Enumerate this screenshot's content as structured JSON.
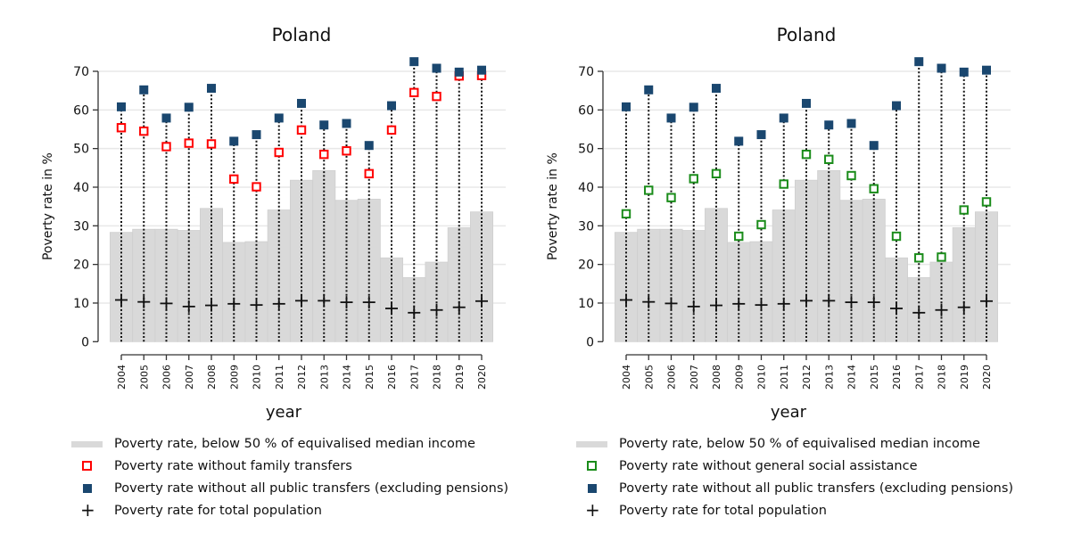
{
  "chart_data": [
    {
      "type": "bar",
      "title": "Poland",
      "xlabel": "year",
      "ylabel": "Poverty rate in %",
      "ylim": [
        0,
        70
      ],
      "yticks": [
        0,
        10,
        20,
        30,
        40,
        50,
        60,
        70
      ],
      "grid": true,
      "legend_position": "bottom",
      "categories": [
        "2004",
        "2005",
        "2006",
        "2007",
        "2008",
        "2009",
        "2010",
        "2011",
        "2012",
        "2013",
        "2014",
        "2015",
        "2016",
        "2017",
        "2018",
        "2019",
        "2020"
      ],
      "series": [
        {
          "name": "Poverty rate, below 50 % of equivalised median income",
          "kind": "bar",
          "color": "#d9d9d9",
          "values": [
            28.3,
            29.1,
            29.1,
            28.8,
            34.5,
            25.7,
            25.9,
            34.1,
            41.8,
            44.3,
            36.6,
            36.9,
            21.7,
            16.6,
            20.6,
            29.5,
            33.6
          ]
        },
        {
          "name": "Poverty rate without family transfers",
          "kind": "hollow-square",
          "color": "#ff0000",
          "values": [
            55.4,
            54.5,
            50.5,
            51.4,
            51.2,
            42.1,
            40.1,
            49.0,
            54.8,
            48.5,
            49.4,
            43.5,
            54.8,
            64.5,
            63.5,
            68.8,
            68.9
          ]
        },
        {
          "name": "Poverty rate without all public transfers (excluding pensions)",
          "kind": "solid-square",
          "color": "#1a476f",
          "values": [
            60.8,
            65.2,
            57.9,
            60.7,
            65.6,
            51.9,
            53.6,
            57.9,
            61.7,
            56.1,
            56.5,
            50.8,
            61.1,
            72.5,
            70.8,
            69.8,
            70.3
          ]
        },
        {
          "name": "Poverty rate for total population",
          "kind": "plus",
          "color": "#111111",
          "values": [
            10.8,
            10.3,
            9.9,
            9.1,
            9.4,
            9.8,
            9.5,
            9.8,
            10.6,
            10.6,
            10.2,
            10.2,
            8.6,
            7.5,
            8.2,
            8.9,
            10.5
          ]
        }
      ]
    },
    {
      "type": "bar",
      "title": "Poland",
      "xlabel": "year",
      "ylabel": "Poverty rate in %",
      "ylim": [
        0,
        70
      ],
      "yticks": [
        0,
        10,
        20,
        30,
        40,
        50,
        60,
        70
      ],
      "grid": true,
      "legend_position": "bottom",
      "categories": [
        "2004",
        "2005",
        "2006",
        "2007",
        "2008",
        "2009",
        "2010",
        "2011",
        "2012",
        "2013",
        "2014",
        "2015",
        "2016",
        "2017",
        "2018",
        "2019",
        "2020"
      ],
      "series": [
        {
          "name": "Poverty rate, below 50 % of equivalised median income",
          "kind": "bar",
          "color": "#d9d9d9",
          "values": [
            28.3,
            29.1,
            29.1,
            28.8,
            34.5,
            25.7,
            25.9,
            34.1,
            41.8,
            44.3,
            36.6,
            36.9,
            21.7,
            16.6,
            20.6,
            29.5,
            33.6
          ]
        },
        {
          "name": "Poverty rate without general social assistance",
          "kind": "hollow-square",
          "color": "#1a8c1a",
          "values": [
            33.1,
            39.2,
            37.3,
            42.2,
            43.5,
            27.3,
            30.3,
            40.8,
            48.5,
            47.2,
            43.0,
            39.6,
            27.3,
            21.7,
            21.9,
            34.1,
            36.2
          ]
        },
        {
          "name": "Poverty rate without all public transfers (excluding pensions)",
          "kind": "solid-square",
          "color": "#1a476f",
          "values": [
            60.8,
            65.2,
            57.9,
            60.7,
            65.6,
            51.9,
            53.6,
            57.9,
            61.7,
            56.1,
            56.5,
            50.8,
            61.1,
            72.5,
            70.8,
            69.8,
            70.3
          ]
        },
        {
          "name": "Poverty rate for total population",
          "kind": "plus",
          "color": "#111111",
          "values": [
            10.8,
            10.3,
            9.9,
            9.1,
            9.4,
            9.8,
            9.5,
            9.8,
            10.6,
            10.6,
            10.2,
            10.2,
            8.6,
            7.5,
            8.2,
            8.9,
            10.5
          ]
        }
      ]
    }
  ]
}
